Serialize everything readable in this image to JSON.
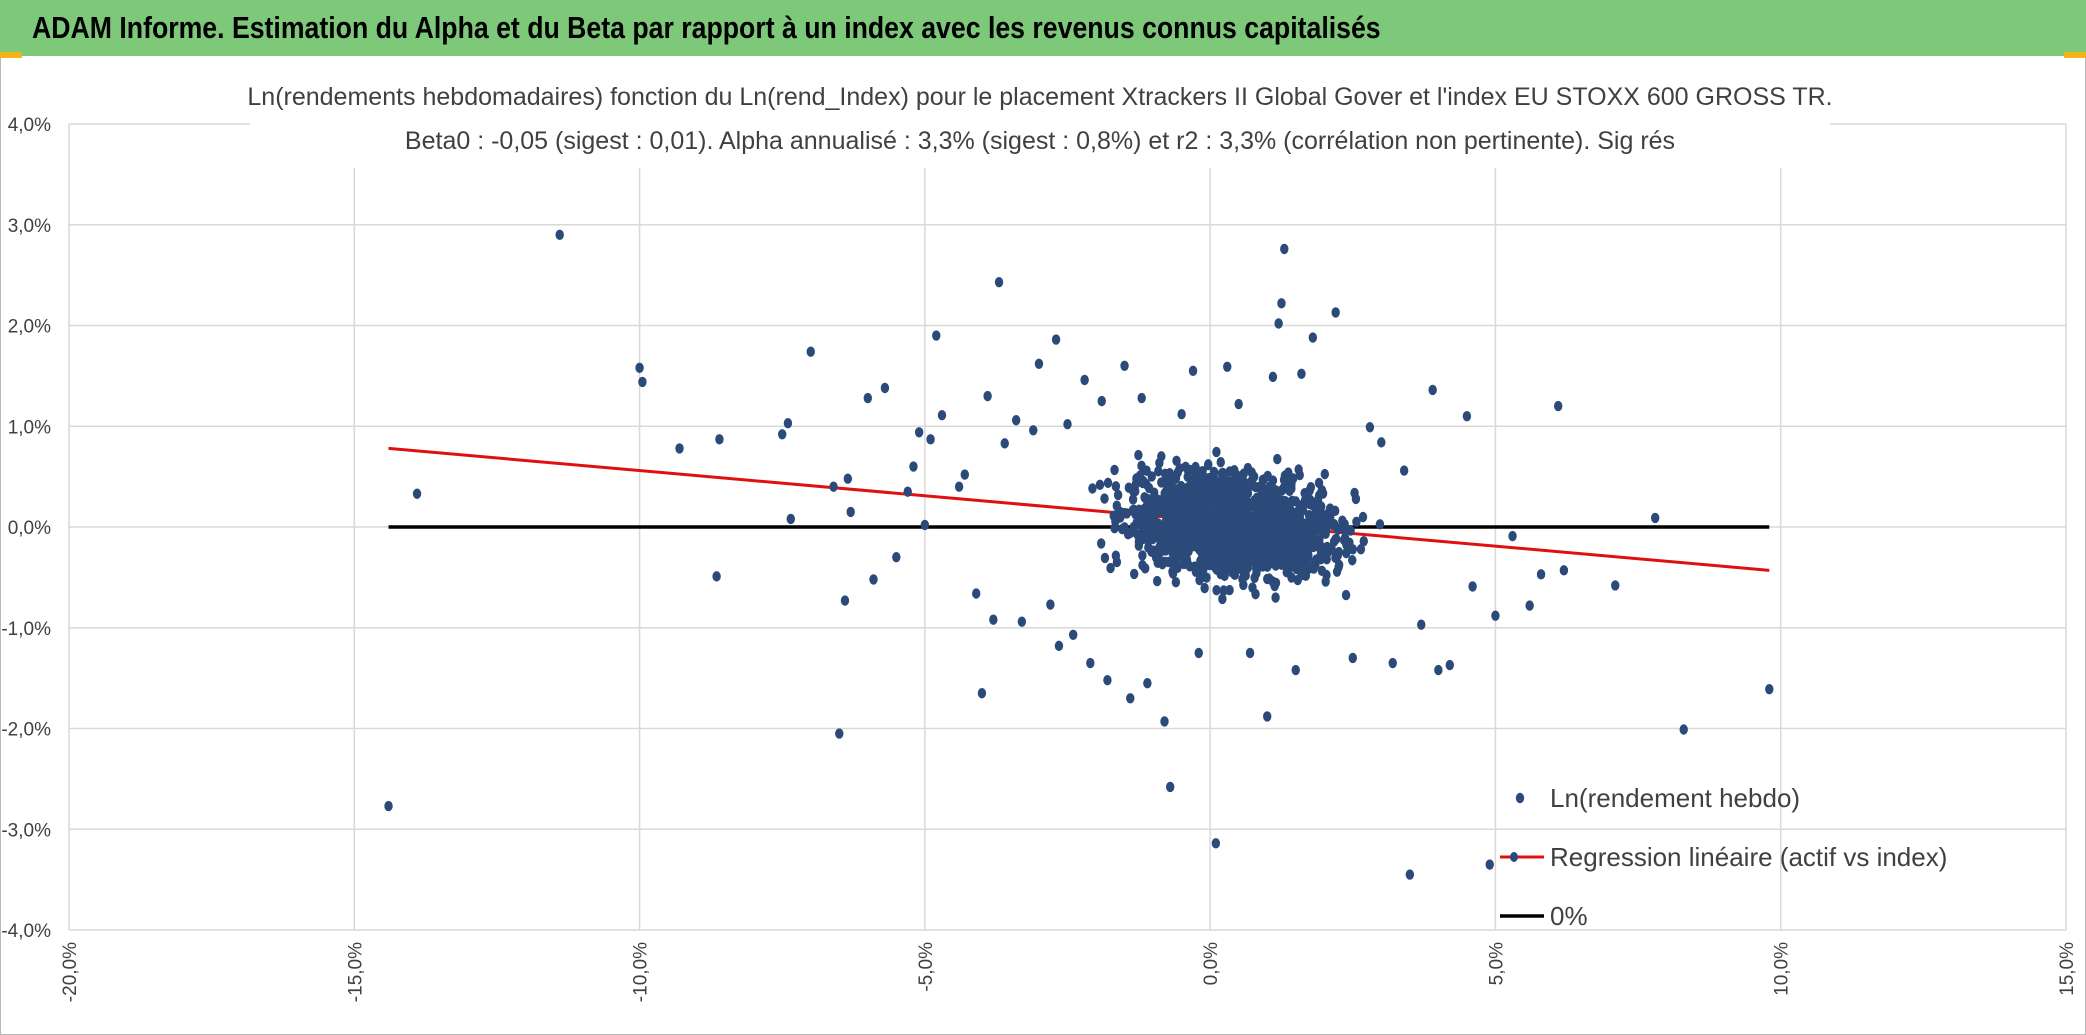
{
  "header": {
    "title": "ADAM Informe. Estimation du Alpha et du Beta par rapport à un index avec les revenus connus capitalisés"
  },
  "colors": {
    "header_bg": "#7ec87a",
    "points": "#2b4a7a",
    "regression": "#e01010",
    "zero_line": "#000000",
    "grid": "#d9d9d9",
    "corner_accent": "#f2b418"
  },
  "chart_data": {
    "type": "scatter",
    "title": "Ln(rendements hebdomadaires) fonction du Ln(rend_Index) pour le placement Xtrackers II Global Gover et l'index EU STOXX 600 GROSS TR.",
    "subtitle": "Beta0 : -0,05 (sigest : 0,01). Alpha annualisé : 3,3% (sigest : 0,8%) et r2 : 3,3% (corrélation non pertinente). Sig rés",
    "xlabel": "",
    "ylabel": "",
    "xlim": [
      -0.2,
      0.15
    ],
    "ylim": [
      -0.04,
      0.04
    ],
    "x_ticks": [
      "-20,0%",
      "-15,0%",
      "-10,0%",
      "-5,0%",
      "0,0%",
      "5,0%",
      "10,0%",
      "15,0%"
    ],
    "x_tick_values": [
      -0.2,
      -0.15,
      -0.1,
      -0.05,
      0.0,
      0.05,
      0.1,
      0.15
    ],
    "y_ticks": [
      "4,0%",
      "3,0%",
      "2,0%",
      "1,0%",
      "0,0%",
      "-1,0%",
      "-2,0%",
      "-3,0%",
      "-4,0%"
    ],
    "y_tick_values": [
      0.04,
      0.03,
      0.02,
      0.01,
      0.0,
      -0.01,
      -0.02,
      -0.03,
      -0.04
    ],
    "grid": true,
    "legend_position": "bottom-right",
    "series": [
      {
        "name": "Ln(rendement hebdo)",
        "kind": "points",
        "points": [
          [
            -0.144,
            -0.0277
          ],
          [
            -0.139,
            0.0033
          ],
          [
            -0.114,
            0.029
          ],
          [
            -0.1,
            0.0158
          ],
          [
            -0.0995,
            0.0144
          ],
          [
            -0.093,
            0.0078
          ],
          [
            -0.086,
            0.0087
          ],
          [
            -0.0865,
            -0.0049
          ],
          [
            -0.075,
            0.0092
          ],
          [
            -0.074,
            0.0103
          ],
          [
            -0.0735,
            0.0008
          ],
          [
            -0.07,
            0.0174
          ],
          [
            -0.066,
            0.004
          ],
          [
            -0.065,
            -0.0205
          ],
          [
            -0.064,
            -0.0073
          ],
          [
            -0.0635,
            0.0048
          ],
          [
            -0.063,
            0.0015
          ],
          [
            -0.06,
            0.0128
          ],
          [
            -0.059,
            -0.0052
          ],
          [
            -0.057,
            0.0138
          ],
          [
            -0.055,
            -0.003
          ],
          [
            -0.053,
            0.0035
          ],
          [
            -0.052,
            0.006
          ],
          [
            -0.051,
            0.0094
          ],
          [
            -0.05,
            0.0002
          ],
          [
            -0.049,
            0.0087
          ],
          [
            -0.048,
            0.019
          ],
          [
            -0.047,
            0.0111
          ],
          [
            -0.044,
            0.004
          ],
          [
            -0.043,
            0.0052
          ],
          [
            -0.041,
            -0.0066
          ],
          [
            -0.04,
            -0.0165
          ],
          [
            -0.039,
            0.013
          ],
          [
            -0.038,
            -0.0092
          ],
          [
            -0.037,
            0.0243
          ],
          [
            -0.036,
            0.0083
          ],
          [
            -0.034,
            0.0106
          ],
          [
            -0.033,
            -0.0094
          ],
          [
            -0.031,
            0.0096
          ],
          [
            -0.03,
            0.0162
          ],
          [
            -0.028,
            -0.0077
          ],
          [
            -0.027,
            0.0186
          ],
          [
            -0.0265,
            -0.0118
          ],
          [
            -0.025,
            0.0102
          ],
          [
            -0.024,
            -0.0107
          ],
          [
            -0.022,
            0.0146
          ],
          [
            -0.021,
            -0.0135
          ],
          [
            -0.019,
            0.0125
          ],
          [
            -0.018,
            -0.0152
          ],
          [
            -0.015,
            0.016
          ],
          [
            -0.014,
            -0.017
          ],
          [
            -0.012,
            0.0128
          ],
          [
            -0.011,
            -0.0155
          ],
          [
            -0.008,
            -0.0193
          ],
          [
            -0.007,
            -0.0258
          ],
          [
            -0.005,
            0.0112
          ],
          [
            -0.003,
            0.0155
          ],
          [
            -0.002,
            -0.0125
          ],
          [
            0.001,
            -0.0314
          ],
          [
            0.003,
            0.0159
          ],
          [
            0.005,
            0.0122
          ],
          [
            0.007,
            -0.0125
          ],
          [
            0.01,
            -0.0188
          ],
          [
            0.011,
            0.0149
          ],
          [
            0.012,
            0.0202
          ],
          [
            0.0125,
            0.0222
          ],
          [
            0.013,
            0.0276
          ],
          [
            0.015,
            -0.0142
          ],
          [
            0.016,
            0.0152
          ],
          [
            0.018,
            0.0188
          ],
          [
            0.022,
            0.0213
          ],
          [
            0.025,
            -0.013
          ],
          [
            0.028,
            0.0099
          ],
          [
            0.03,
            0.0084
          ],
          [
            0.032,
            -0.0135
          ],
          [
            0.034,
            0.0056
          ],
          [
            0.035,
            -0.0345
          ],
          [
            0.037,
            -0.0097
          ],
          [
            0.039,
            0.0136
          ],
          [
            0.04,
            -0.0142
          ],
          [
            0.042,
            -0.0137
          ],
          [
            0.045,
            0.011
          ],
          [
            0.046,
            -0.0059
          ],
          [
            0.049,
            -0.0335
          ],
          [
            0.05,
            -0.0088
          ],
          [
            0.053,
            -0.0009
          ],
          [
            0.056,
            -0.0078
          ],
          [
            0.058,
            -0.0047
          ],
          [
            0.061,
            0.012
          ],
          [
            0.062,
            -0.0043
          ],
          [
            0.071,
            -0.0058
          ],
          [
            0.078,
            0.0009
          ],
          [
            0.083,
            -0.0201
          ],
          [
            0.098,
            -0.0161
          ]
        ]
      },
      {
        "name": "Regression linéaire (actif vs index)",
        "kind": "line",
        "points": [
          [
            -0.144,
            0.0078
          ],
          [
            0.098,
            -0.0043
          ]
        ]
      },
      {
        "name": "0%",
        "kind": "line",
        "points": [
          [
            -0.144,
            0.0
          ],
          [
            0.098,
            0.0
          ]
        ]
      }
    ]
  }
}
